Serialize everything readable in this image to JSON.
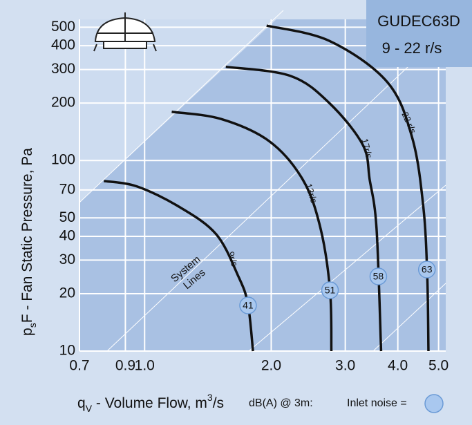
{
  "chart_data": {
    "type": "line",
    "title": "GUDEC63D",
    "subtitle": "9 - 22 r/s",
    "x_label": [
      "q",
      "V",
      " - Volume Flow, m",
      "3",
      "/s"
    ],
    "y_label": [
      "p",
      "s",
      "F - Fan Static Pressure, Pa"
    ],
    "annotation": [
      "System",
      "Lines"
    ],
    "legend_text": [
      "dB(A) @ 3m:",
      "Inlet noise ="
    ],
    "log_x": true,
    "log_y": true,
    "grid": true,
    "xlim": [
      0.7,
      5.2
    ],
    "ylim": [
      10,
      550
    ],
    "xticks": [
      0.7,
      0.9,
      {
        "value": 1,
        "label": "1.0"
      },
      {
        "value": 2,
        "label": "2.0"
      },
      {
        "value": 3,
        "label": "3.0"
      },
      {
        "value": 4,
        "label": "4.0"
      },
      {
        "value": 5,
        "label": "5.0"
      }
    ],
    "yticks": [
      10,
      20,
      30,
      40,
      50,
      70,
      100,
      200,
      300,
      400,
      500
    ],
    "series": [
      {
        "name": "9r/s",
        "color": "#111111",
        "noise": 41,
        "x": [
          0.8,
          0.96,
          1.21,
          1.48,
          1.67,
          1.76,
          1.81
        ],
        "values": [
          78,
          73,
          57,
          41,
          24.7,
          17.7,
          10
        ]
      },
      {
        "name": "13r/s",
        "color": "#111111",
        "noise": 51,
        "x": [
          1.16,
          1.52,
          1.98,
          2.38,
          2.62,
          2.76,
          2.78
        ],
        "values": [
          180,
          165,
          126,
          79,
          44,
          20.8,
          10
        ]
      },
      {
        "name": "17r/s",
        "color": "#111111",
        "noise": 58,
        "x": [
          1.56,
          2.22,
          2.75,
          3.3,
          3.43,
          3.56,
          3.65
        ],
        "values": [
          310,
          278,
          200,
          121,
          79,
          44,
          10
        ]
      },
      {
        "name": "22 r/s",
        "color": "#111111",
        "noise": 63,
        "x": [
          1.95,
          2.75,
          3.78,
          4.33,
          4.6,
          4.7,
          4.73
        ],
        "values": [
          510,
          424,
          257,
          131,
          57,
          24.6,
          10
        ]
      }
    ]
  }
}
